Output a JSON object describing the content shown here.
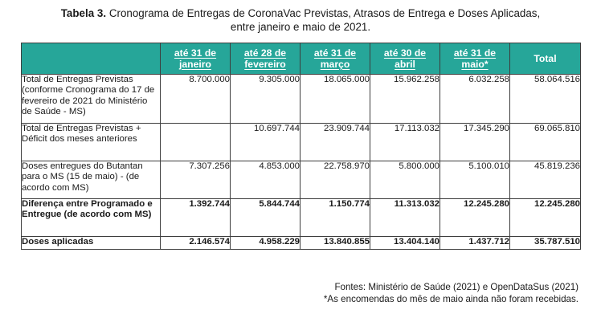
{
  "caption": {
    "label": "Tabela 3.",
    "line1": "Cronograma de Entregas de CoronaVac Previstas, Atrasos de Entrega e Doses Aplicadas,",
    "line2": "entre janeiro e maio de 2021."
  },
  "table": {
    "headers": [
      {
        "l1": "até 31 de",
        "l2": "janeiro"
      },
      {
        "l1": "até 28 de",
        "l2": "fevereiro"
      },
      {
        "l1": "até 31 de",
        "l2": "março"
      },
      {
        "l1": "até 30 de",
        "l2": "abril"
      },
      {
        "l1": "até 31 de",
        "l2": "maio*"
      },
      {
        "l1": "Total",
        "l2": ""
      }
    ],
    "rows": [
      {
        "label": "Total de Entregas Previstas (conforme Cronograma do 17 de fevereiro de 2021 do Ministério de Saúde - MS)",
        "values": [
          "8.700.000",
          "9.305.000",
          "18.065.000",
          "15.962.258",
          "6.032.258",
          "58.064.516"
        ]
      },
      {
        "label": "Total de Entregas Previstas + Déficit dos meses anteriores",
        "values": [
          "",
          "10.697.744",
          "23.909.744",
          "17.113.032",
          "17.345.290",
          "69.065.810"
        ]
      },
      {
        "label": "Doses entregues do Butantan para o MS (15 de maio) - (de acordo com MS)",
        "values": [
          "7.307.256",
          "4.853.000",
          "22.758.970",
          "5.800.000",
          "5.100.010",
          "45.819.236"
        ]
      },
      {
        "label": "Diferença entre Programado e Entregue (de acordo com MS)",
        "values": [
          "1.392.744",
          "5.844.744",
          "1.150.774",
          "11.313.032",
          "12.245.280",
          "12.245.280"
        ]
      },
      {
        "label": "Doses aplicadas",
        "values": [
          "2.146.574",
          "4.958.229",
          "13.840.855",
          "13.404.140",
          "1.437.712",
          "35.787.510"
        ]
      }
    ]
  },
  "footer": {
    "sources": "Fontes: Ministério de Saúde (2021) e OpenDataSus (2021)",
    "note": "*As encomendas do mês de maio ainda não foram recebidas."
  }
}
